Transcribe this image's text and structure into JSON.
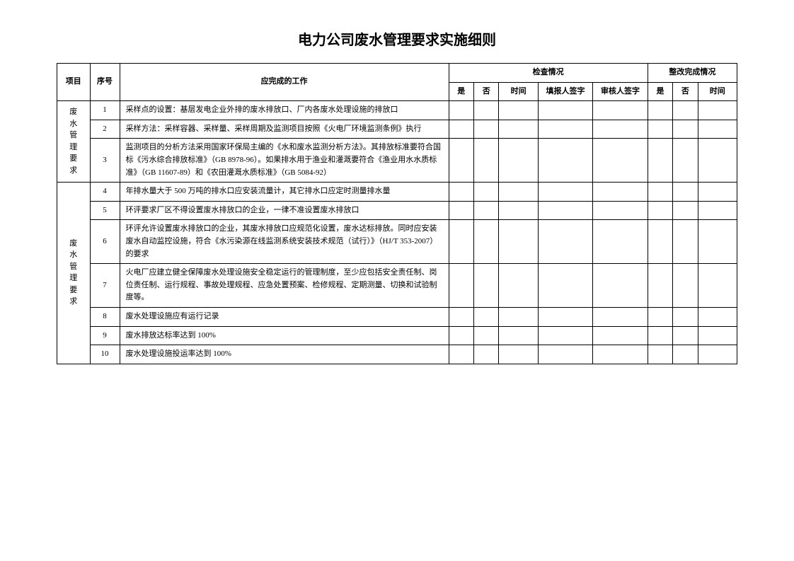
{
  "title": "电力公司废水管理要求实施细则",
  "headers": {
    "project": "项目",
    "seq": "序号",
    "work": "应完成的工作",
    "check_group": "检查情况",
    "rectify_group": "整改完成情况",
    "yes": "是",
    "no": "否",
    "time": "时间",
    "filler": "填报人签字",
    "reviewer": "审核人签字"
  },
  "groups": [
    {
      "category": "废水管理要求",
      "rows": [
        {
          "seq": "1",
          "work": "采样点的设置：基层发电企业外排的废水排放口、厂内各废水处理设施的排放口"
        },
        {
          "seq": "2",
          "work": "采样方法：采样容器、采样量、采样周期及监测项目按照《火电厂环境监测条例》执行"
        },
        {
          "seq": "3",
          "work": "监测项目的分析方法采用国家环保局主编的《水和废水监测分析方法》。其排放标准要符合国标《污水综合排放标准》（GB 8978-96）。如果排水用于渔业和灌溉要符合《渔业用水水质标准》（GB 11607-89）和《农田灌溉水质标准》（GB 5084-92）"
        }
      ]
    },
    {
      "category": "废水管理要求",
      "rows": [
        {
          "seq": "4",
          "work": "年排水量大于 500 万吨的排水口应安装流量计，其它排水口应定时测量排水量"
        },
        {
          "seq": "5",
          "work": "环评要求厂区不得设置废水排放口的企业，一律不准设置废水排放口"
        },
        {
          "seq": "6",
          "work": "环评允许设置废水排放口的企业，其废水排放口应规范化设置，废水达标排放。同时应安装废水自动监控设施，符合《水污染源在线监测系统安装技术规范（试行）》（HJ/T 353-2007）的要求"
        },
        {
          "seq": "7",
          "work": "火电厂应建立健全保障废水处理设施安全稳定运行的管理制度，至少应包括安全责任制、岗位责任制、运行规程、事故处理规程、应急处置预案、检修规程、定期测量、切换和试验制度等。"
        },
        {
          "seq": "8",
          "work": "废水处理设施应有运行记录"
        },
        {
          "seq": "9",
          "work": "废水排放达标率达到 100%"
        },
        {
          "seq": "10",
          "work": "废水处理设施投运率达到 100%"
        }
      ]
    }
  ]
}
